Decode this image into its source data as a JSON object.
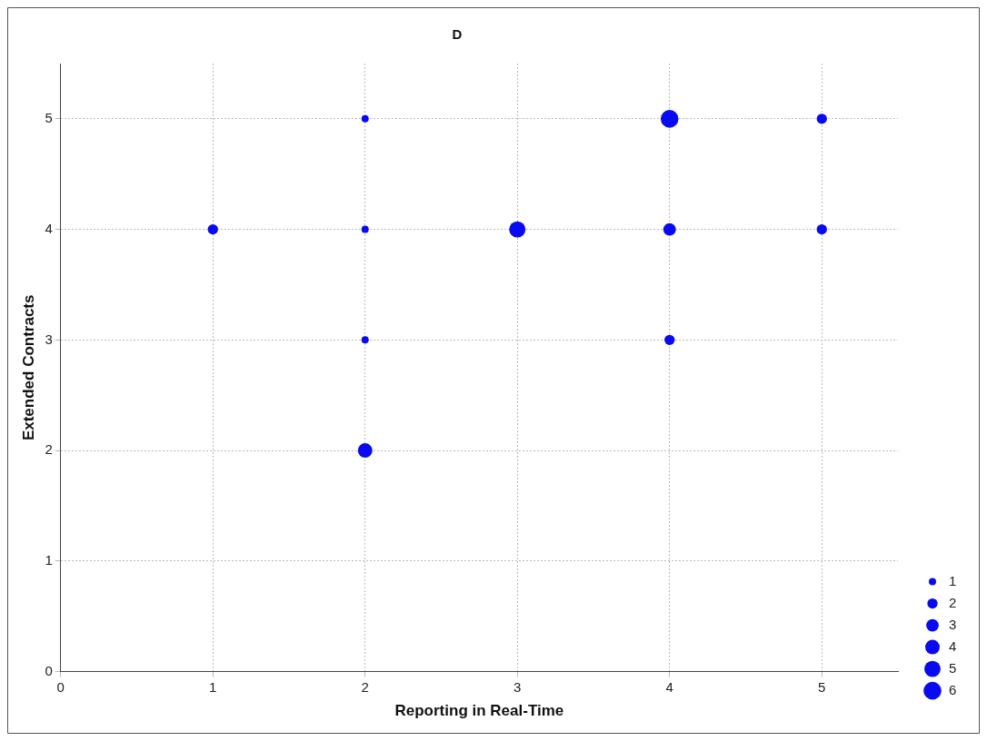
{
  "chart_data": {
    "type": "bubble",
    "title": "D",
    "xlabel": "Reporting in Real-Time",
    "ylabel": "Extended Contracts",
    "x": [
      1,
      2,
      2,
      2,
      2,
      3,
      4,
      4,
      4,
      5,
      5
    ],
    "values": [
      4,
      5,
      4,
      3,
      2,
      4,
      5,
      4,
      3,
      5,
      4
    ],
    "sizes": [
      2,
      1,
      1,
      1,
      4,
      5,
      6,
      3,
      2,
      2,
      2
    ],
    "size_legend": [
      1,
      2,
      3,
      4,
      5,
      6
    ],
    "color": "#0a0af0",
    "xlim": [
      0,
      5.5
    ],
    "ylim": [
      0,
      5.5
    ],
    "xticks": [
      0,
      1,
      2,
      3,
      4,
      5
    ],
    "yticks": [
      0,
      1,
      2,
      3,
      4,
      5
    ],
    "grid": true
  }
}
